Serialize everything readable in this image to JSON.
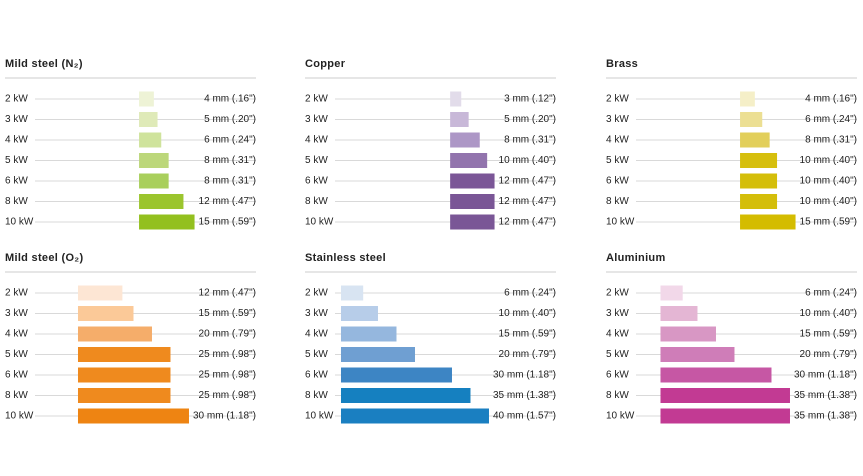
{
  "chart_data": [
    {
      "type": "hbar",
      "title": "Mild steel (N₂)",
      "categories": [
        "2 kW",
        "3 kW",
        "4 kW",
        "5 kW",
        "6 kW",
        "8 kW",
        "10 kW"
      ],
      "values": [
        4,
        5,
        6,
        8,
        8,
        12,
        15
      ],
      "value_labels": [
        "4 mm (.16\")",
        "5 mm (.20\")",
        "6 mm (.24\")",
        "8 mm (.31\")",
        "8 mm (.31\")",
        "12 mm (.47\")",
        "15 mm (.59\")"
      ],
      "colors": [
        "#eef3d6",
        "#dfeab8",
        "#cfe39c",
        "#bcd77a",
        "#a9cf5c",
        "#9bc52e",
        "#93c01f"
      ]
    },
    {
      "type": "hbar",
      "title": "Copper",
      "categories": [
        "2 kW",
        "3 kW",
        "4 kW",
        "5 kW",
        "6 kW",
        "8 kW",
        "10 kW"
      ],
      "values": [
        3,
        5,
        8,
        10,
        12,
        12,
        12
      ],
      "value_labels": [
        "3 mm (.12\")",
        "5 mm (.20\")",
        "8 mm (.31\")",
        "10 mm (.40\")",
        "12 mm (.47\")",
        "12 mm (.47\")",
        "12 mm (.47\")"
      ],
      "colors": [
        "#e2dcea",
        "#c8b8d8",
        "#ad97c6",
        "#9274ad",
        "#7b5697",
        "#7a5696",
        "#7a5696"
      ]
    },
    {
      "type": "hbar",
      "title": "Brass",
      "categories": [
        "2 kW",
        "3 kW",
        "4 kW",
        "5 kW",
        "6 kW",
        "8 kW",
        "10 kW"
      ],
      "values": [
        4,
        6,
        8,
        10,
        10,
        10,
        15
      ],
      "value_labels": [
        "4 mm (.16\")",
        "6 mm (.24\")",
        "8 mm (.31\")",
        "10 mm (.40\")",
        "10 mm (.40\")",
        "10 mm (.40\")",
        "15 mm (.59\")"
      ],
      "colors": [
        "#f5efc8",
        "#ecdf93",
        "#e2cf5a",
        "#d6bf0d",
        "#d4be0a",
        "#d4be0a",
        "#d4bc00"
      ]
    },
    {
      "type": "hbar",
      "title": "Mild steel (O₂)",
      "categories": [
        "2 kW",
        "3 kW",
        "4 kW",
        "5 kW",
        "6 kW",
        "8 kW",
        "10 kW"
      ],
      "values": [
        12,
        15,
        20,
        25,
        25,
        25,
        30
      ],
      "value_labels": [
        "12 mm (.47\")",
        "15 mm (.59\")",
        "20 mm (.79\")",
        "25 mm (.98\")",
        "25 mm (.98\")",
        "25 mm (.98\")",
        "30 mm (1.18\")"
      ],
      "colors": [
        "#fde6d4",
        "#fbc998",
        "#f5ad6a",
        "#ef8a1e",
        "#ef8a1e",
        "#ef8a1e",
        "#ee8412"
      ]
    },
    {
      "type": "hbar",
      "title": "Stainless steel",
      "categories": [
        "2 kW",
        "3 kW",
        "4 kW",
        "5 kW",
        "6 kW",
        "8 kW",
        "10 kW"
      ],
      "values": [
        6,
        10,
        15,
        20,
        30,
        35,
        40
      ],
      "value_labels": [
        "6 mm (.24\")",
        "10 mm (.40\")",
        "15 mm (.59\")",
        "20 mm (.79\")",
        "30 mm (1.18\")",
        "35 mm (1.38\")",
        "40 mm (1.57\")"
      ],
      "colors": [
        "#d8e4f2",
        "#b7cde9",
        "#95b7de",
        "#6f9fd2",
        "#3d85c4",
        "#1580c0",
        "#1a7fc1"
      ]
    },
    {
      "type": "hbar",
      "title": "Aluminium",
      "categories": [
        "2 kW",
        "3 kW",
        "4 kW",
        "5 kW",
        "6 kW",
        "8 kW",
        "10 kW"
      ],
      "values": [
        6,
        10,
        15,
        20,
        30,
        35,
        35
      ],
      "value_labels": [
        "6 mm (.24\")",
        "10 mm (.40\")",
        "15 mm (.59\")",
        "20 mm (.79\")",
        "30 mm (1.18\")",
        "35 mm (1.38\")",
        "35 mm (1.38\")"
      ],
      "colors": [
        "#f2d8e9",
        "#e4b6d4",
        "#d897c4",
        "#cf7db8",
        "#c657a4",
        "#c23a93",
        "#c23a93"
      ]
    }
  ]
}
